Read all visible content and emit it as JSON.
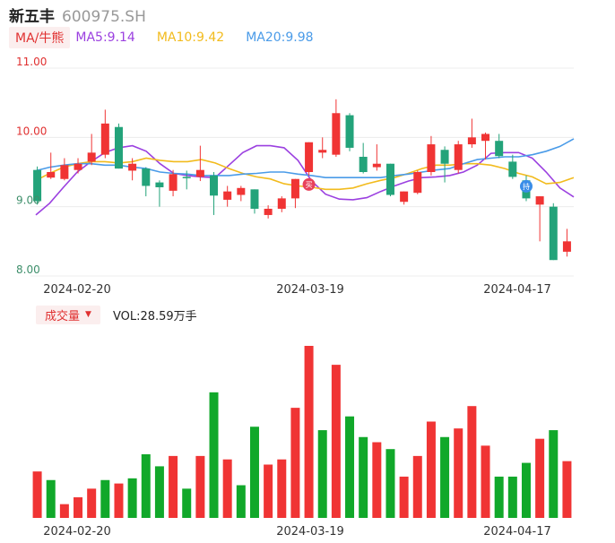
{
  "header": {
    "name": "新五丰",
    "code": "600975.SH"
  },
  "ma_legend": {
    "tag": "MA/牛熊",
    "items": [
      {
        "label": "MA5:9.14",
        "color": "#9b40e0"
      },
      {
        "label": "MA10:9.42",
        "color": "#f2bb1d"
      },
      {
        "label": "MA20:9.98",
        "color": "#4a9be8"
      }
    ]
  },
  "volume_legend": {
    "tag": "成交量",
    "caret": "▼",
    "value": "VOL:28.59万手"
  },
  "colors": {
    "up": "#f03434",
    "down": "#23a37a",
    "vol_up": "#f03434",
    "vol_down": "#11a82a"
  },
  "chart_data": [
    {
      "type": "candlestick",
      "y_ticks": [
        "11.00",
        "10.00",
        "9.00",
        "8.00"
      ],
      "ylim": [
        8.0,
        11.0
      ],
      "x_ticks": [
        "2024-02-20",
        "2024-03-19",
        "2024-04-17"
      ],
      "markers": [
        {
          "type": "buy",
          "label": "买",
          "index": 20
        },
        {
          "type": "hold",
          "label": "持",
          "index": 36
        }
      ],
      "candles": [
        {
          "o": 9.53,
          "c": 9.08,
          "h": 9.58,
          "l": 9.03
        },
        {
          "o": 9.42,
          "c": 9.5,
          "h": 9.78,
          "l": 9.4
        },
        {
          "o": 9.4,
          "c": 9.6,
          "h": 9.7,
          "l": 9.38
        },
        {
          "o": 9.53,
          "c": 9.62,
          "h": 9.7,
          "l": 9.48
        },
        {
          "o": 9.65,
          "c": 9.78,
          "h": 10.05,
          "l": 9.6
        },
        {
          "o": 9.75,
          "c": 10.2,
          "h": 10.4,
          "l": 9.7
        },
        {
          "o": 10.15,
          "c": 9.55,
          "h": 10.2,
          "l": 9.55
        },
        {
          "o": 9.52,
          "c": 9.62,
          "h": 9.7,
          "l": 9.38
        },
        {
          "o": 9.55,
          "c": 9.3,
          "h": 9.57,
          "l": 9.15
        },
        {
          "o": 9.35,
          "c": 9.28,
          "h": 9.38,
          "l": 9.0
        },
        {
          "o": 9.23,
          "c": 9.47,
          "h": 9.53,
          "l": 9.15
        },
        {
          "o": 9.43,
          "c": 9.42,
          "h": 9.52,
          "l": 9.25
        },
        {
          "o": 9.43,
          "c": 9.53,
          "h": 9.88,
          "l": 9.37
        },
        {
          "o": 9.45,
          "c": 9.16,
          "h": 9.5,
          "l": 8.88
        },
        {
          "o": 9.1,
          "c": 9.22,
          "h": 9.3,
          "l": 9.0
        },
        {
          "o": 9.17,
          "c": 9.27,
          "h": 9.3,
          "l": 9.08
        },
        {
          "o": 9.25,
          "c": 8.97,
          "h": 9.25,
          "l": 8.9
        },
        {
          "o": 8.88,
          "c": 8.97,
          "h": 9.02,
          "l": 8.83
        },
        {
          "o": 8.97,
          "c": 9.12,
          "h": 9.15,
          "l": 8.92
        },
        {
          "o": 9.12,
          "c": 9.4,
          "h": 9.4,
          "l": 8.98
        },
        {
          "o": 9.5,
          "c": 9.93,
          "h": 9.93,
          "l": 9.45
        },
        {
          "o": 9.78,
          "c": 9.82,
          "h": 10.0,
          "l": 9.7
        },
        {
          "o": 9.75,
          "c": 10.35,
          "h": 10.55,
          "l": 9.72
        },
        {
          "o": 10.32,
          "c": 9.85,
          "h": 10.35,
          "l": 9.8
        },
        {
          "o": 9.72,
          "c": 9.5,
          "h": 9.92,
          "l": 9.48
        },
        {
          "o": 9.57,
          "c": 9.62,
          "h": 9.9,
          "l": 9.52
        },
        {
          "o": 9.62,
          "c": 9.17,
          "h": 9.62,
          "l": 9.15
        },
        {
          "o": 9.07,
          "c": 9.22,
          "h": 9.22,
          "l": 9.03
        },
        {
          "o": 9.2,
          "c": 9.5,
          "h": 9.52,
          "l": 9.18
        },
        {
          "o": 9.5,
          "c": 9.9,
          "h": 10.02,
          "l": 9.45
        },
        {
          "o": 9.82,
          "c": 9.62,
          "h": 9.87,
          "l": 9.35
        },
        {
          "o": 9.53,
          "c": 9.9,
          "h": 9.95,
          "l": 9.48
        },
        {
          "o": 9.9,
          "c": 10.0,
          "h": 10.27,
          "l": 9.85
        },
        {
          "o": 9.95,
          "c": 10.05,
          "h": 10.07,
          "l": 9.68
        },
        {
          "o": 9.95,
          "c": 9.73,
          "h": 10.05,
          "l": 9.7
        },
        {
          "o": 9.65,
          "c": 9.43,
          "h": 9.75,
          "l": 9.4
        },
        {
          "o": 9.38,
          "c": 9.12,
          "h": 9.45,
          "l": 9.08
        },
        {
          "o": 9.03,
          "c": 9.15,
          "h": 9.15,
          "l": 8.5
        },
        {
          "o": 9.0,
          "c": 8.23,
          "h": 9.05,
          "l": 8.23
        },
        {
          "o": 8.35,
          "c": 8.5,
          "h": 8.68,
          "l": 8.28
        }
      ],
      "ma5": [
        8.88,
        9.05,
        9.28,
        9.5,
        9.65,
        9.78,
        9.85,
        9.88,
        9.8,
        9.62,
        9.48,
        9.45,
        9.43,
        9.42,
        9.6,
        9.78,
        9.88,
        9.88,
        9.85,
        9.67,
        9.37,
        9.18,
        9.11,
        9.1,
        9.13,
        9.22,
        9.3,
        9.37,
        9.42,
        9.43,
        9.45,
        9.5,
        9.6,
        9.77,
        9.78,
        9.78,
        9.7,
        9.5,
        9.27,
        9.14
      ],
      "ma10": [
        9.38,
        9.48,
        9.57,
        9.62,
        9.65,
        9.65,
        9.63,
        9.65,
        9.7,
        9.67,
        9.65,
        9.65,
        9.68,
        9.63,
        9.55,
        9.48,
        9.43,
        9.4,
        9.33,
        9.3,
        9.28,
        9.25,
        9.25,
        9.27,
        9.33,
        9.38,
        9.42,
        9.48,
        9.55,
        9.6,
        9.6,
        9.62,
        9.62,
        9.6,
        9.55,
        9.48,
        9.43,
        9.33,
        9.35,
        9.42
      ],
      "ma20": [
        9.52,
        9.57,
        9.6,
        9.62,
        9.62,
        9.6,
        9.6,
        9.57,
        9.55,
        9.5,
        9.48,
        9.47,
        9.45,
        9.45,
        9.45,
        9.47,
        9.48,
        9.5,
        9.5,
        9.47,
        9.45,
        9.42,
        9.42,
        9.42,
        9.42,
        9.42,
        9.45,
        9.47,
        9.5,
        9.53,
        9.55,
        9.62,
        9.68,
        9.7,
        9.72,
        9.72,
        9.75,
        9.8,
        9.87,
        9.98
      ]
    },
    {
      "type": "bar",
      "title": "成交量",
      "x_ticks": [
        "2024-02-20",
        "2024-03-19",
        "2024-04-17"
      ],
      "values": [
        0.27,
        0.22,
        0.08,
        0.12,
        0.17,
        0.22,
        0.2,
        0.23,
        0.37,
        0.3,
        0.36,
        0.17,
        0.36,
        0.73,
        0.34,
        0.19,
        0.53,
        0.31,
        0.34,
        0.64,
        1.0,
        0.51,
        0.89,
        0.59,
        0.47,
        0.44,
        0.4,
        0.24,
        0.36,
        0.56,
        0.47,
        0.52,
        0.65,
        0.42,
        0.24,
        0.24,
        0.32,
        0.46,
        0.51,
        0.33
      ],
      "up": [
        true,
        false,
        true,
        true,
        true,
        false,
        true,
        false,
        false,
        false,
        true,
        false,
        true,
        false,
        true,
        false,
        false,
        true,
        true,
        true,
        true,
        false,
        true,
        false,
        false,
        true,
        false,
        true,
        true,
        true,
        false,
        true,
        true,
        true,
        false,
        false,
        false,
        true,
        false,
        true
      ]
    }
  ]
}
